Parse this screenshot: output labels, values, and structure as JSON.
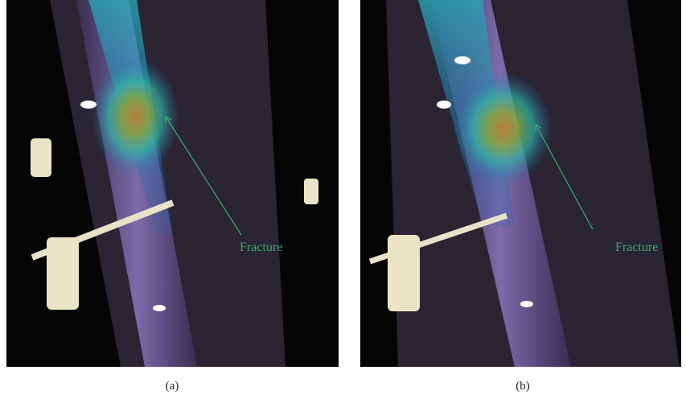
{
  "panels": [
    {
      "label": "(a)",
      "annotation": "Fracture"
    },
    {
      "label": "(b)",
      "annotation": "Fracture"
    }
  ]
}
